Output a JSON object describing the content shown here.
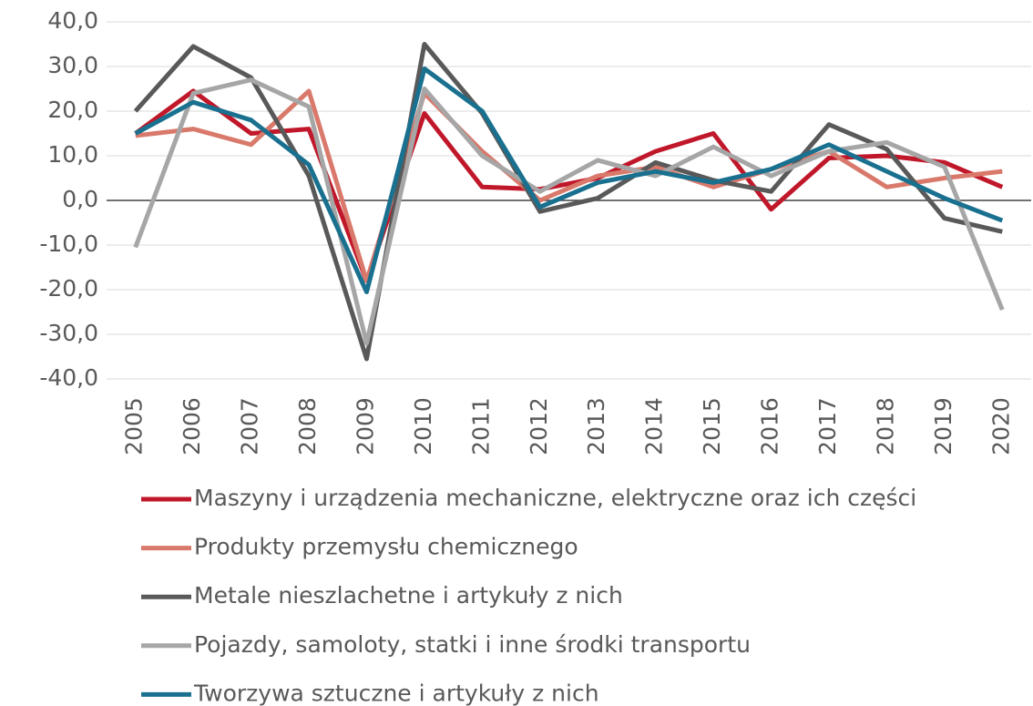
{
  "chart_data": {
    "type": "line",
    "categories": [
      "2005",
      "2006",
      "2007",
      "2008",
      "2009",
      "2010",
      "2011",
      "2012",
      "2013",
      "2014",
      "2015",
      "2016",
      "2017",
      "2018",
      "2019",
      "2020"
    ],
    "series": [
      {
        "name": "Maszyny i urządzenia mechaniczne, elektryczne oraz ich części",
        "color": "#c0182a",
        "values": [
          15,
          24.5,
          15,
          16,
          -18,
          19.5,
          3,
          2.5,
          5,
          11,
          15,
          -2,
          9.5,
          10,
          8.5,
          3
        ]
      },
      {
        "name": "Produkty przemysłu chemicznego",
        "color": "#d9796b",
        "values": [
          14.5,
          16,
          12.5,
          24.5,
          -18,
          24,
          11,
          0,
          5.5,
          7.5,
          3,
          7,
          11,
          3,
          5,
          6.5
        ]
      },
      {
        "name": "Metale nieszlachetne i artykuły z nich",
        "color": "#595959",
        "values": [
          20,
          34.5,
          27.5,
          5.5,
          -35.5,
          35,
          19.5,
          -2.5,
          0.5,
          8.5,
          4.5,
          2,
          17,
          11.5,
          -4,
          -7
        ]
      },
      {
        "name": "Pojazdy, samoloty, statki i inne środki transportu",
        "color": "#a6a6a6",
        "values": [
          -10.5,
          24,
          27,
          21,
          -32,
          25,
          10,
          2,
          9,
          5.5,
          12,
          5.5,
          11,
          13,
          7.5,
          -24.5
        ]
      },
      {
        "name": "Tworzywa sztuczne i artykuły z nich",
        "color": "#19708f",
        "values": [
          15,
          22,
          18,
          8,
          -20.5,
          29.5,
          20,
          -1.5,
          4,
          6.5,
          4,
          7,
          12.5,
          6.5,
          0.5,
          -4.5
        ]
      }
    ],
    "ylim": [
      -40,
      40
    ],
    "yticks": [
      {
        "value": -40,
        "label": "-40,0"
      },
      {
        "value": -30,
        "label": "-30,0"
      },
      {
        "value": -20,
        "label": "-20,0"
      },
      {
        "value": -10,
        "label": "-10,0"
      },
      {
        "value": 0,
        "label": "0,0"
      },
      {
        "value": 10,
        "label": "10,0"
      },
      {
        "value": 20,
        "label": "20,0"
      },
      {
        "value": 30,
        "label": "30,0"
      },
      {
        "value": 40,
        "label": "40,0"
      }
    ],
    "grid": true,
    "legend": "bottom"
  }
}
